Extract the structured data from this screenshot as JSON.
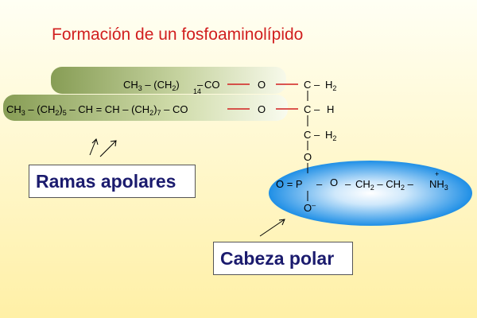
{
  "title": "Formación de un fosfoaminolípido",
  "colors": {
    "title": "#d11f1f",
    "bond_red": "#d11f1f",
    "box_text": "#1b1b6e",
    "background_top": "#fffff2",
    "background_bottom": "#fff0a8",
    "chain_green_dark": "#8aa05a",
    "chain_green_light": "#f6f8e6",
    "head_blue": "#1f8fe6"
  },
  "labels": {
    "apolar": "Ramas apolares",
    "polar": "Cabeza polar"
  },
  "chain1": {
    "ch3": "CH",
    "ch3_sub": "3",
    "dash": "–",
    "ch2_paren": "(CH",
    "ch2_sub": "2",
    "close": ")",
    "n": "14",
    "co": "CO"
  },
  "chain2": {
    "ch3": "CH",
    "ch3_sub": "3",
    "ch2_paren": "(CH",
    "ch2_sub": "2",
    "close": ")",
    "n1": "5",
    "ch_eq_ch": "– CH = CH –",
    "n2": "7",
    "co": "CO"
  },
  "glycerol": {
    "c": "C",
    "h2": "H",
    "h2_sub": "2",
    "h": "H",
    "o": "O",
    "dash": "–"
  },
  "phosphate": {
    "o_eq_p": "O = P",
    "o_minus": "O",
    "minus": "–",
    "ethanolamine": "O",
    "ch2a": "CH",
    "ch2b": "CH",
    "sub2": "2",
    "nh3": "NH",
    "sub3": "3",
    "plus": "+",
    "dash": "–"
  }
}
